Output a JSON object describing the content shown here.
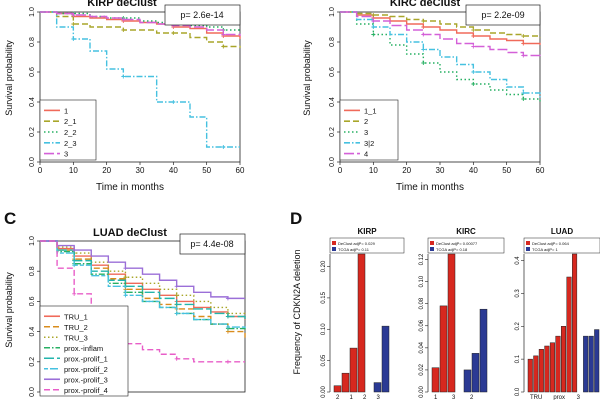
{
  "chart_data": [
    {
      "type": "line",
      "panel_letter": "",
      "title": "KIRP deClust",
      "xlabel": "Time in months",
      "ylabel": "Survival probability",
      "xlim": [
        0,
        60
      ],
      "ylim": [
        0,
        1
      ],
      "xticks": [
        0,
        10,
        20,
        30,
        40,
        50,
        60
      ],
      "yticks": [
        "0.0",
        "0.2",
        "0.4",
        "0.6",
        "0.8",
        "1.0"
      ],
      "pvalue": "p= 2.6e-14",
      "legend_position": "bottom-left",
      "series": [
        {
          "name": "1",
          "color": "#f06a5a",
          "dash": "solid",
          "x": [
            0,
            5,
            10,
            15,
            20,
            25,
            30,
            35,
            40,
            45,
            50,
            55,
            60
          ],
          "y": [
            1.0,
            0.99,
            0.97,
            0.96,
            0.95,
            0.94,
            0.93,
            0.92,
            0.9,
            0.89,
            0.86,
            0.84,
            0.82
          ]
        },
        {
          "name": "2_1",
          "color": "#a9a62a",
          "dash": "dashed",
          "x": [
            0,
            5,
            10,
            15,
            20,
            25,
            30,
            35,
            40,
            45,
            50,
            55,
            60
          ],
          "y": [
            1.0,
            0.97,
            0.92,
            0.9,
            0.9,
            0.88,
            0.88,
            0.86,
            0.86,
            0.83,
            0.8,
            0.77,
            0.76
          ]
        },
        {
          "name": "2_2",
          "color": "#27b063",
          "dash": "dotted",
          "x": [
            0,
            5,
            10,
            15,
            20,
            25,
            30,
            35,
            40,
            45,
            50,
            55,
            60
          ],
          "y": [
            1.0,
            0.99,
            0.99,
            0.97,
            0.96,
            0.96,
            0.94,
            0.93,
            0.92,
            0.91,
            0.9,
            0.88,
            0.88
          ]
        },
        {
          "name": "2_3",
          "color": "#46c1e0",
          "dash": "dotdash",
          "x": [
            0,
            5,
            10,
            15,
            20,
            25,
            30,
            35,
            40,
            45,
            50,
            55,
            60
          ],
          "y": [
            1.0,
            0.9,
            0.82,
            0.74,
            0.62,
            0.57,
            0.57,
            0.4,
            0.4,
            0.3,
            0.1,
            0.1,
            0.1
          ]
        },
        {
          "name": "3",
          "color": "#d460d8",
          "dash": "longdash",
          "x": [
            0,
            5,
            10,
            15,
            20,
            25,
            30,
            35,
            40,
            45,
            50,
            55,
            60
          ],
          "y": [
            1.0,
            0.99,
            0.98,
            0.97,
            0.96,
            0.95,
            0.93,
            0.92,
            0.91,
            0.9,
            0.88,
            0.85,
            0.84
          ]
        }
      ]
    },
    {
      "type": "line",
      "panel_letter": "",
      "title": "KIRC deClust",
      "xlabel": "Time in months",
      "ylabel": "Survival probability",
      "xlim": [
        0,
        60
      ],
      "ylim": [
        0,
        1
      ],
      "xticks": [
        0,
        10,
        20,
        30,
        40,
        50,
        60
      ],
      "yticks": [
        "0.0",
        "0.2",
        "0.4",
        "0.6",
        "0.8",
        "1.0"
      ],
      "pvalue": "p= 2.2e-09",
      "legend_position": "bottom-left",
      "series": [
        {
          "name": "1_1",
          "color": "#f06a5a",
          "dash": "solid",
          "x": [
            0,
            5,
            10,
            15,
            20,
            25,
            30,
            35,
            40,
            45,
            50,
            55,
            60
          ],
          "y": [
            1.0,
            0.98,
            0.96,
            0.94,
            0.92,
            0.9,
            0.88,
            0.86,
            0.84,
            0.82,
            0.81,
            0.79,
            0.78
          ]
        },
        {
          "name": "2",
          "color": "#a9a62a",
          "dash": "dashed",
          "x": [
            0,
            5,
            10,
            15,
            20,
            25,
            30,
            35,
            40,
            45,
            50,
            55,
            60
          ],
          "y": [
            1.0,
            0.99,
            0.98,
            0.97,
            0.95,
            0.94,
            0.92,
            0.9,
            0.88,
            0.86,
            0.85,
            0.84,
            0.83
          ]
        },
        {
          "name": "3",
          "color": "#27b063",
          "dash": "dotted",
          "x": [
            0,
            5,
            10,
            15,
            20,
            25,
            30,
            35,
            40,
            45,
            50,
            55,
            60
          ],
          "y": [
            1.0,
            0.92,
            0.85,
            0.78,
            0.72,
            0.66,
            0.6,
            0.55,
            0.52,
            0.48,
            0.45,
            0.42,
            0.4
          ]
        },
        {
          "name": "3|2",
          "color": "#46c1e0",
          "dash": "dotdash",
          "x": [
            0,
            5,
            10,
            15,
            20,
            25,
            30,
            35,
            40,
            45,
            50,
            55,
            60
          ],
          "y": [
            1.0,
            0.95,
            0.9,
            0.85,
            0.8,
            0.75,
            0.7,
            0.65,
            0.6,
            0.55,
            0.5,
            0.46,
            0.43
          ]
        },
        {
          "name": "4",
          "color": "#d460d8",
          "dash": "longdash",
          "x": [
            0,
            5,
            10,
            15,
            20,
            25,
            30,
            35,
            40,
            45,
            50,
            55,
            60
          ],
          "y": [
            1.0,
            0.97,
            0.94,
            0.91,
            0.88,
            0.85,
            0.82,
            0.79,
            0.77,
            0.75,
            0.73,
            0.71,
            0.7
          ]
        }
      ]
    },
    {
      "type": "line",
      "panel_letter": "C",
      "title": "LUAD deClust",
      "xlabel": "",
      "ylabel": "Survival probability",
      "xlim": [
        0,
        60
      ],
      "ylim": [
        0,
        1
      ],
      "xticks": [],
      "yticks": [
        "0.0",
        "0.2",
        "0.4",
        "0.6",
        "0.8",
        "1.0"
      ],
      "pvalue": "p= 4.4e-08",
      "legend_position": "bottom-left",
      "series": [
        {
          "name": "TRU_1",
          "color": "#f06a5a",
          "dash": "solid",
          "x": [
            0,
            5,
            10,
            15,
            20,
            25,
            30,
            35,
            40,
            45,
            50,
            55,
            60
          ],
          "y": [
            1.0,
            0.95,
            0.9,
            0.84,
            0.78,
            0.72,
            0.68,
            0.64,
            0.6,
            0.56,
            0.53,
            0.5,
            0.48
          ]
        },
        {
          "name": "TRU_2",
          "color": "#d98c1c",
          "dash": "dashed",
          "x": [
            0,
            5,
            10,
            15,
            20,
            25,
            30,
            35,
            40,
            45,
            50,
            55,
            60
          ],
          "y": [
            1.0,
            0.94,
            0.88,
            0.82,
            0.75,
            0.68,
            0.62,
            0.58,
            0.55,
            0.5,
            0.45,
            0.4,
            0.36
          ]
        },
        {
          "name": "TRU_3",
          "color": "#a9a62a",
          "dash": "dotted",
          "x": [
            0,
            5,
            10,
            15,
            20,
            25,
            30,
            35,
            40,
            45,
            50,
            55,
            60
          ],
          "y": [
            1.0,
            0.96,
            0.92,
            0.86,
            0.8,
            0.76,
            0.72,
            0.68,
            0.64,
            0.6,
            0.56,
            0.52,
            0.5
          ]
        },
        {
          "name": "prox.-inflam",
          "color": "#27b063",
          "dash": "dotdash",
          "x": [
            0,
            5,
            10,
            15,
            20,
            25,
            30,
            35,
            40,
            45,
            50,
            55,
            60
          ],
          "y": [
            1.0,
            0.93,
            0.85,
            0.78,
            0.72,
            0.66,
            0.6,
            0.56,
            0.52,
            0.48,
            0.45,
            0.42,
            0.4
          ]
        },
        {
          "name": "prox.-prolif_1",
          "color": "#23b5ac",
          "dash": "longdash",
          "x": [
            0,
            5,
            10,
            15,
            20,
            25,
            30,
            35,
            40,
            45,
            50,
            55,
            60
          ],
          "y": [
            1.0,
            0.94,
            0.87,
            0.8,
            0.74,
            0.7,
            0.66,
            0.62,
            0.58,
            0.55,
            0.52,
            0.5,
            0.48
          ]
        },
        {
          "name": "prox.-prolif_2",
          "color": "#46c1e0",
          "dash": "twodash",
          "x": [
            0,
            5,
            10,
            15,
            20,
            25,
            30,
            35,
            40,
            45,
            50,
            55,
            60
          ],
          "y": [
            1.0,
            0.92,
            0.84,
            0.77,
            0.7,
            0.64,
            0.6,
            0.56,
            0.52,
            0.48,
            0.45,
            0.43,
            0.42
          ]
        },
        {
          "name": "prox.-prolif_3",
          "color": "#9b6fd8",
          "dash": "solid",
          "x": [
            0,
            5,
            10,
            15,
            20,
            25,
            30,
            35,
            40,
            45,
            50,
            55,
            60
          ],
          "y": [
            1.0,
            0.97,
            0.94,
            0.9,
            0.86,
            0.82,
            0.78,
            0.74,
            0.7,
            0.66,
            0.63,
            0.62,
            0.62
          ]
        },
        {
          "name": "prox.-prolif_4",
          "color": "#e85ec8",
          "dash": "dashed",
          "x": [
            0,
            5,
            10,
            15,
            20,
            25,
            30,
            35,
            40,
            45,
            50,
            55,
            60
          ],
          "y": [
            1.0,
            0.82,
            0.65,
            0.5,
            0.4,
            0.32,
            0.28,
            0.25,
            0.22,
            0.2,
            0.2,
            0.2,
            0.2
          ]
        }
      ]
    },
    {
      "type": "bar",
      "panel_letter": "D",
      "ylabel": "Frequency of CDKN2A deletion",
      "panels": [
        {
          "title": "KIRP",
          "legend": [
            "DeClust adjP= 0.029",
            "TCGA adjP= 0.11"
          ],
          "yticks": [
            "0.00",
            "0.05",
            "0.10",
            "0.15",
            "0.20"
          ],
          "ylim": [
            0,
            0.22
          ],
          "red_values": [
            0.01,
            0.03,
            0.07,
            0.22
          ],
          "blue_values": [
            0.015,
            0.105
          ],
          "xtick_labels": [
            "2",
            "1",
            "2",
            "3"
          ]
        },
        {
          "title": "KIRC",
          "legend": [
            "DeClust adjP= 0.00077",
            "TCGA adjP= 0.18"
          ],
          "yticks": [
            "0.00",
            "0.02",
            "0.04",
            "0.06",
            "0.08",
            "0.10",
            "0.12"
          ],
          "ylim": [
            0,
            0.125
          ],
          "red_values": [
            0.022,
            0.078,
            0.125
          ],
          "blue_values": [
            0.02,
            0.035,
            0.075
          ],
          "xtick_labels": [
            "1",
            "3",
            "2"
          ]
        },
        {
          "title": "LUAD",
          "legend": [
            "DeClust adjP= 0.064",
            "TCGA adjP= 1"
          ],
          "yticks": [
            "0.0",
            "0.1",
            "0.2",
            "0.3",
            "0.4"
          ],
          "ylim": [
            0,
            0.42
          ],
          "red_values": [
            0.1,
            0.11,
            0.13,
            0.14,
            0.15,
            0.17,
            0.2,
            0.35,
            0.42
          ],
          "blue_values": [
            0.17,
            0.17,
            0.19
          ],
          "xtick_labels": [
            "TRU",
            "prox",
            "3"
          ]
        }
      ]
    }
  ]
}
